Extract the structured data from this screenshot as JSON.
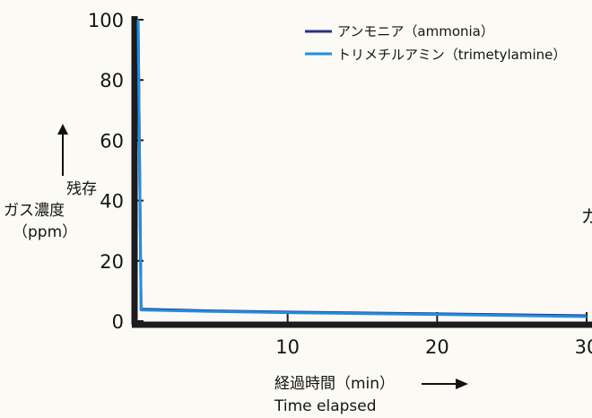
{
  "chart_data": {
    "type": "line",
    "title": "",
    "xlabel": "経過時間（min）",
    "xlabel_en": "Time elapsed",
    "ylabel": [
      "残存",
      "ガス濃度",
      "（ppm）"
    ],
    "xlim": [
      0,
      30
    ],
    "ylim": [
      0,
      100
    ],
    "x_ticks": [
      10,
      20,
      30
    ],
    "x_tick_labels": [
      "10",
      "20",
      "30"
    ],
    "y_ticks": [
      0,
      20,
      40,
      60,
      80,
      100
    ],
    "y_tick_labels": [
      "0",
      "20",
      "40",
      "60",
      "80",
      "100"
    ],
    "grid": false,
    "legend_position": "top-right",
    "edge_fragment": "ガ",
    "series": [
      {
        "name": "アンモニア（ammonia）",
        "color": "#2a2f86",
        "points": [
          [
            0,
            100
          ],
          [
            0.2,
            4
          ],
          [
            5,
            3.4
          ],
          [
            10,
            3
          ],
          [
            20,
            2.4
          ],
          [
            30,
            1.8
          ]
        ]
      },
      {
        "name": "トリメチルアミン（trimetylamine）",
        "color": "#1e8fe0",
        "points": [
          [
            0,
            100
          ],
          [
            0.2,
            3.7
          ],
          [
            5,
            3.2
          ],
          [
            10,
            2.8
          ],
          [
            20,
            2.2
          ],
          [
            30,
            1.5
          ]
        ]
      }
    ]
  }
}
